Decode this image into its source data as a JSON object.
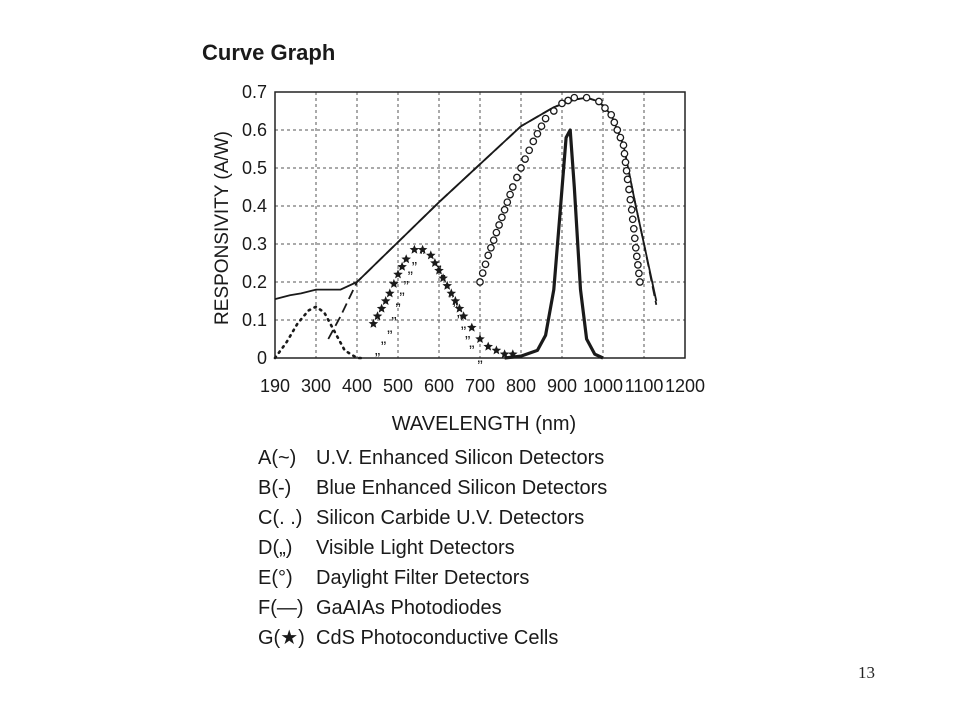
{
  "slide": {
    "page_number": "13"
  },
  "chart_data": {
    "type": "line",
    "title": "Curve Graph",
    "xlabel": "WAVELENGTH (nm)",
    "ylabel": "RESPONSIVITY (A/W)",
    "x_ticks": [
      190,
      300,
      400,
      500,
      600,
      700,
      800,
      900,
      1000,
      1100,
      1200
    ],
    "y_ticks": [
      0,
      0.1,
      0.2,
      0.3,
      0.4,
      0.5,
      0.6,
      0.7
    ],
    "x_tick_labels": [
      "190",
      "300",
      "400",
      "500",
      "600",
      "700",
      "800",
      "900",
      "1000",
      "1100",
      "1200"
    ],
    "y_tick_labels": [
      "0",
      "0.1",
      "0.2",
      "0.3",
      "0.4",
      "0.5",
      "0.6",
      "0.7"
    ],
    "xlim": [
      190,
      1200
    ],
    "ylim": [
      0,
      0.7
    ],
    "grid": true,
    "grid_style": "dashed",
    "legend_position": "below",
    "series": [
      {
        "key": "A(~)",
        "name": "U.V. Enhanced Silicon Detectors",
        "marker": "solid",
        "x": [
          190,
          230,
          260,
          300,
          330,
          360,
          400,
          500,
          600,
          700,
          800,
          880,
          930,
          960,
          990,
          1020,
          1050,
          1080,
          1100,
          1130
        ],
        "y": [
          0.155,
          0.165,
          0.17,
          0.18,
          0.18,
          0.18,
          0.2,
          0.305,
          0.41,
          0.51,
          0.61,
          0.66,
          0.68,
          0.685,
          0.675,
          0.64,
          0.56,
          0.4,
          0.3,
          0.15
        ]
      },
      {
        "key": "B(-)",
        "name": "Blue Enhanced Silicon Detectors",
        "marker": "dashed",
        "x": [
          330,
          360,
          400,
          500,
          600,
          700,
          800,
          880,
          930,
          960,
          990,
          1020,
          1050,
          1080,
          1100,
          1130
        ],
        "y": [
          0.05,
          0.11,
          0.2,
          0.305,
          0.41,
          0.51,
          0.61,
          0.66,
          0.68,
          0.685,
          0.675,
          0.64,
          0.56,
          0.4,
          0.3,
          0.14
        ]
      },
      {
        "key": "C(. .)",
        "name": "Silicon Carbide U.V. Detectors",
        "marker": "dotted",
        "x": [
          190,
          220,
          250,
          280,
          300,
          320,
          340,
          370,
          400,
          420
        ],
        "y": [
          0.0,
          0.04,
          0.09,
          0.125,
          0.135,
          0.12,
          0.08,
          0.02,
          0.0,
          0.0
        ]
      },
      {
        "key": "D(„)",
        "name": "Visible Light Detectors",
        "marker": "comma",
        "x": [
          450,
          480,
          500,
          520,
          540,
          560,
          580,
          600,
          620,
          640,
          660,
          680,
          700
        ],
        "y": [
          0.03,
          0.09,
          0.16,
          0.22,
          0.27,
          0.3,
          0.29,
          0.26,
          0.21,
          0.16,
          0.1,
          0.05,
          0.01
        ]
      },
      {
        "key": "E(°)",
        "name": "Daylight Filter Detectors",
        "marker": "circle",
        "x": [
          700,
          720,
          740,
          760,
          780,
          800,
          830,
          860,
          900,
          930,
          960,
          990,
          1020,
          1050,
          1060,
          1070,
          1080,
          1090
        ],
        "y": [
          0.2,
          0.27,
          0.33,
          0.39,
          0.45,
          0.5,
          0.57,
          0.63,
          0.67,
          0.685,
          0.685,
          0.675,
          0.64,
          0.56,
          0.47,
          0.39,
          0.29,
          0.2
        ]
      },
      {
        "key": "F(—)",
        "name": "GaAIAs Photodiodes",
        "marker": "thick",
        "x": [
          760,
          800,
          840,
          860,
          880,
          895,
          910,
          920,
          930,
          945,
          960,
          980,
          1000
        ],
        "y": [
          0.0,
          0.005,
          0.02,
          0.06,
          0.18,
          0.38,
          0.58,
          0.6,
          0.45,
          0.18,
          0.05,
          0.01,
          0.0
        ]
      },
      {
        "key": "G(★)",
        "name": "CdS Photoconductive Cells",
        "marker": "star",
        "x": [
          440,
          460,
          480,
          500,
          520,
          540,
          560,
          580,
          600,
          620,
          640,
          660,
          680,
          700,
          720,
          740,
          760,
          780
        ],
        "y": [
          0.09,
          0.13,
          0.17,
          0.22,
          0.26,
          0.285,
          0.285,
          0.27,
          0.23,
          0.19,
          0.15,
          0.11,
          0.08,
          0.05,
          0.03,
          0.02,
          0.01,
          0.01
        ]
      }
    ]
  }
}
